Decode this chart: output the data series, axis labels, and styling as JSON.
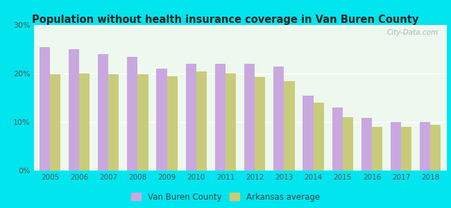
{
  "title": "Population without health insurance coverage in Van Buren County",
  "years": [
    2005,
    2006,
    2007,
    2008,
    2009,
    2010,
    2011,
    2012,
    2013,
    2014,
    2015,
    2016,
    2017,
    2018
  ],
  "van_buren": [
    25.5,
    25.0,
    24.0,
    23.5,
    21.0,
    22.0,
    22.0,
    22.0,
    21.5,
    15.5,
    13.0,
    10.8,
    10.0,
    10.0
  ],
  "arkansas": [
    19.8,
    20.0,
    19.9,
    19.8,
    19.5,
    20.5,
    20.0,
    19.3,
    18.5,
    14.0,
    11.0,
    9.0,
    9.0,
    9.5
  ],
  "bar_color_vb": "#c9a8e0",
  "bar_color_ar": "#c8cc7a",
  "background_outer": "#00e5ee",
  "background_inner": "#eef8ee",
  "title_color": "#222222",
  "axis_label_color": "#444444",
  "tick_color": "#555555",
  "legend_label_vb": "Van Buren County",
  "legend_label_ar": "Arkansas average",
  "ylim": [
    0,
    30
  ],
  "yticks": [
    0,
    10,
    20,
    30
  ],
  "ytick_labels": [
    "0%",
    "10%",
    "20%",
    "30%"
  ],
  "watermark": "City-Data.com",
  "watermark_color": "#99aabb"
}
